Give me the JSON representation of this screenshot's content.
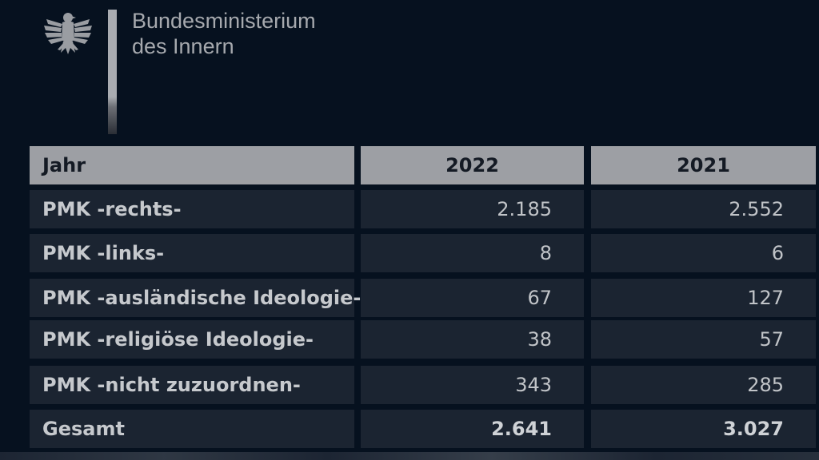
{
  "header": {
    "ministry_line1": "Bundesministerium",
    "ministry_line2": "des Innern",
    "logo_icon": "federal-eagle-icon"
  },
  "table": {
    "columns": [
      "Jahr",
      "2022",
      "2021"
    ],
    "rows": [
      {
        "label": "PMK -rechts-",
        "y2022": "2.185",
        "y2021": "2.552"
      },
      {
        "label": "PMK -links-",
        "y2022": "8",
        "y2021": "6"
      },
      {
        "label": "PMK -ausländische Ideologie-",
        "y2022": "67",
        "y2021": "127"
      },
      {
        "label": "PMK -religiöse Ideologie-",
        "y2022": "38",
        "y2021": "57"
      },
      {
        "label": "PMK -nicht zuzuordnen-",
        "y2022": "343",
        "y2021": "285"
      }
    ],
    "total": {
      "label": "Gesamt",
      "y2022": "2.641",
      "y2021": "3.027"
    }
  },
  "colors": {
    "background": "#06111f",
    "header_fill": "#9d9fa4",
    "row_fill": "#1b2431",
    "text": "#c6c9cd"
  }
}
